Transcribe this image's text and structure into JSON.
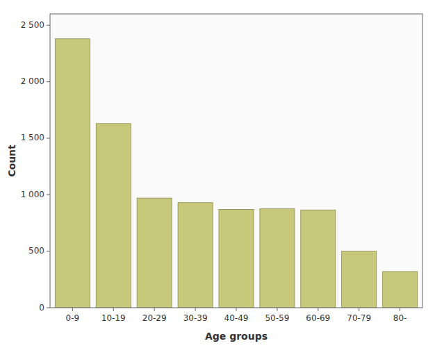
{
  "chart_data": {
    "type": "bar",
    "categories": [
      "0-9",
      "10-19",
      "20-29",
      "30-39",
      "40-49",
      "50-59",
      "60-69",
      "70-79",
      "80-"
    ],
    "values": [
      2380,
      1630,
      970,
      930,
      870,
      875,
      865,
      500,
      320
    ],
    "color": "#C8C87A",
    "xlabel": "Age groups",
    "ylabel": "Count",
    "ylim": [
      0,
      2600
    ],
    "yticks": [
      0,
      500,
      {
        "value": 1000,
        "label": "1 000"
      },
      {
        "value": 1500,
        "label": "1 500"
      },
      {
        "value": 2000,
        "label": "2 000"
      },
      {
        "value": 2500,
        "label": "2 500"
      }
    ],
    "grid": false
  }
}
